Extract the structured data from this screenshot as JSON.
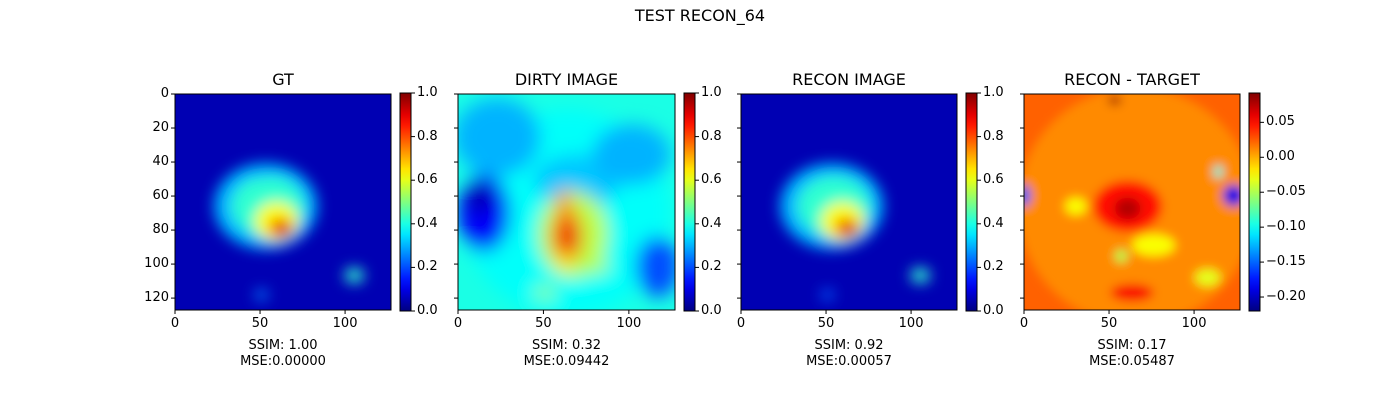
{
  "figure": {
    "suptitle": "TEST RECON_64"
  },
  "chart_data": [
    {
      "type": "heatmap",
      "title": "GT",
      "colormap": "jet",
      "image_size": [
        128,
        128
      ],
      "xlim": [
        0,
        127
      ],
      "ylim": [
        127,
        0
      ],
      "xticks": [
        0,
        50,
        100
      ],
      "yticks": [
        0,
        20,
        40,
        60,
        80,
        100,
        120
      ],
      "colorbar": {
        "vmin": 0.0,
        "vmax": 1.0,
        "ticks": [
          "0.0",
          "0.2",
          "0.4",
          "0.6",
          "0.8",
          "1.0"
        ]
      },
      "metrics": {
        "ssim": "SSIM: 1.00",
        "mse": "MSE:0.00000"
      }
    },
    {
      "type": "heatmap",
      "title": "DIRTY IMAGE",
      "colormap": "jet",
      "image_size": [
        128,
        128
      ],
      "xlim": [
        0,
        127
      ],
      "ylim": [
        127,
        0
      ],
      "xticks": [
        0,
        50,
        100
      ],
      "colorbar": {
        "vmin": 0.0,
        "vmax": 1.0,
        "ticks": [
          "0.0",
          "0.2",
          "0.4",
          "0.6",
          "0.8",
          "1.0"
        ]
      },
      "metrics": {
        "ssim": "SSIM: 0.32",
        "mse": "MSE:0.09442"
      }
    },
    {
      "type": "heatmap",
      "title": "RECON IMAGE",
      "colormap": "jet",
      "image_size": [
        128,
        128
      ],
      "xlim": [
        0,
        127
      ],
      "ylim": [
        127,
        0
      ],
      "xticks": [
        0,
        50,
        100
      ],
      "colorbar": {
        "vmin": 0.0,
        "vmax": 1.0,
        "ticks": [
          "0.0",
          "0.2",
          "0.4",
          "0.6",
          "0.8",
          "1.0"
        ]
      },
      "metrics": {
        "ssim": "SSIM: 0.92",
        "mse": "MSE:0.00057"
      }
    },
    {
      "type": "heatmap",
      "title": "RECON - TARGET",
      "colormap": "jet",
      "image_size": [
        128,
        128
      ],
      "xlim": [
        0,
        127
      ],
      "ylim": [
        127,
        0
      ],
      "xticks": [
        0,
        50,
        100
      ],
      "colorbar": {
        "vmin": -0.22,
        "vmax": 0.092,
        "ticks": [
          "0.05",
          "0.00",
          "−0.05",
          "−0.10",
          "−0.15",
          "−0.20"
        ],
        "tick_values": [
          0.05,
          0.0,
          -0.05,
          -0.1,
          -0.15,
          -0.2
        ]
      },
      "metrics": {
        "ssim": "SSIM: 0.17",
        "mse": "MSE:0.05487"
      }
    }
  ]
}
